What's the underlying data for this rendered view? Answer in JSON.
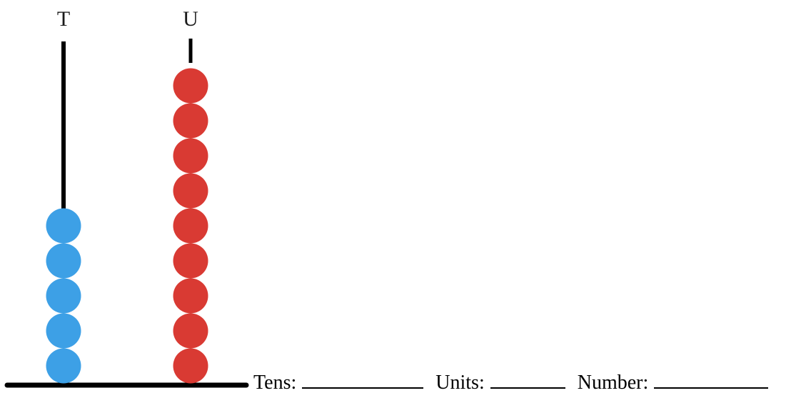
{
  "abacus": {
    "rods": [
      {
        "label": "T",
        "beads": 5,
        "color": "#3da0e6"
      },
      {
        "label": "U",
        "beads": 9,
        "color": "#d93a33"
      }
    ],
    "rod_color": "#000000"
  },
  "worksheet": {
    "tens_label": "Tens:",
    "units_label": "Units:",
    "number_label": "Number:"
  }
}
